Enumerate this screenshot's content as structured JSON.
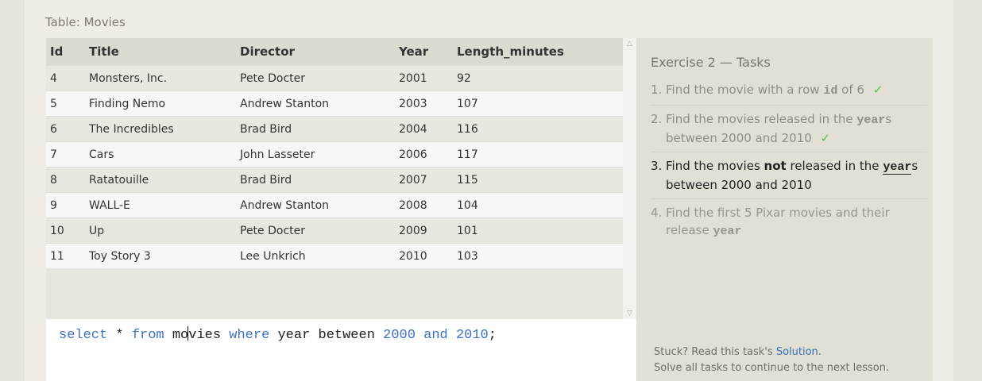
{
  "table": {
    "label": "Table: Movies",
    "columns": [
      "Id",
      "Title",
      "Director",
      "Year",
      "Length_minutes"
    ],
    "rows": [
      [
        "4",
        "Monsters, Inc.",
        "Pete Docter",
        "2001",
        "92"
      ],
      [
        "5",
        "Finding Nemo",
        "Andrew Stanton",
        "2003",
        "107"
      ],
      [
        "6",
        "The Incredibles",
        "Brad Bird",
        "2004",
        "116"
      ],
      [
        "7",
        "Cars",
        "John Lasseter",
        "2006",
        "117"
      ],
      [
        "8",
        "Ratatouille",
        "Brad Bird",
        "2007",
        "115"
      ],
      [
        "9",
        "WALL-E",
        "Andrew Stanton",
        "2008",
        "104"
      ],
      [
        "10",
        "Up",
        "Pete Docter",
        "2009",
        "101"
      ],
      [
        "11",
        "Toy Story 3",
        "Lee Unkrich",
        "2010",
        "103"
      ]
    ]
  },
  "scrollbar": {
    "up_icon": "chevron-up-icon",
    "down_icon": "chevron-down-icon"
  },
  "editor": {
    "tokens": {
      "select": "select",
      "star": "*",
      "from": "from",
      "table_a": "mo",
      "table_b": "vies",
      "where": "where",
      "column": "year",
      "between": "between",
      "low": "2000",
      "and": "and",
      "high": "2010",
      "semicolon": ";"
    }
  },
  "tasks": {
    "title": "Exercise 2 — Tasks",
    "items": [
      {
        "num": "1.",
        "text_a": "Find the movie with a row",
        "code": "id",
        "text_b": "of 6",
        "check": "✓"
      },
      {
        "num": "2.",
        "text_a": "Find the movies released in the",
        "code": "year",
        "text_b": "s between 2000 and 2010",
        "check": "✓"
      },
      {
        "num": "3.",
        "text_a": "Find the movies",
        "bold": "not",
        "text_mid": "released in the",
        "code": "year",
        "text_b": "s between 2000 and 2010"
      },
      {
        "num": "4.",
        "text_a": "Find the first 5 Pixar movies and their release",
        "code": "year"
      }
    ],
    "stuck_text": "Stuck? Read this task's",
    "solution_link": "Solution",
    "period": ".",
    "continue_text": "Solve all tasks to continue to the next lesson."
  }
}
